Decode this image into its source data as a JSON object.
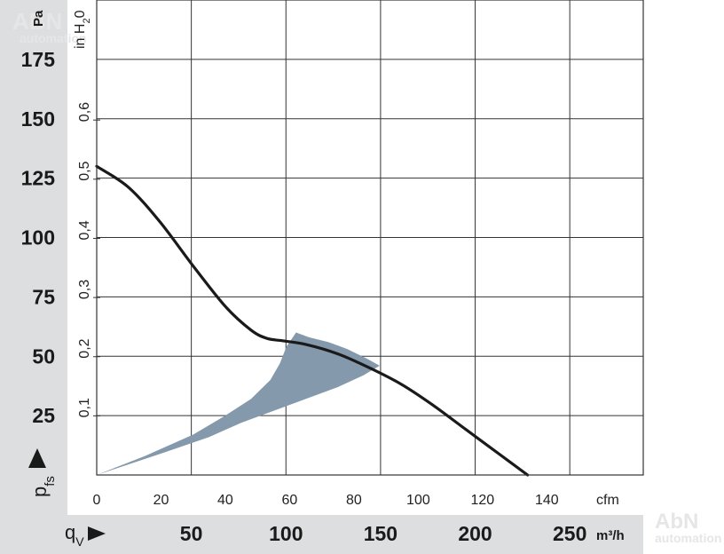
{
  "chart_data": {
    "type": "line",
    "x_axis": {
      "label": "cfm",
      "ticks": [
        "0",
        "20",
        "40",
        "60",
        "80",
        "100",
        "120",
        "140"
      ],
      "range": [
        0,
        170
      ]
    },
    "x_axis_secondary": {
      "label": "m³/h",
      "symbol": "q",
      "symbol_sub": "V",
      "ticks": [
        "50",
        "100",
        "150",
        "200",
        "250"
      ],
      "tick_values": [
        50,
        100,
        150,
        200,
        250
      ]
    },
    "y_axis": {
      "label": "Pa",
      "symbol": "p",
      "symbol_sub": "fs",
      "ticks": [
        "25",
        "50",
        "75",
        "100",
        "125",
        "150",
        "175"
      ],
      "range": [
        0,
        200
      ]
    },
    "y_axis_secondary": {
      "label": "in H",
      "label_sub": "2",
      "label_tail": "0",
      "ticks": [
        "0,1",
        "0,2",
        "0,3",
        "0,4",
        "0,5",
        "0,6"
      ],
      "tick_values": [
        0.1,
        0.2,
        0.3,
        0.4,
        0.5,
        0.6
      ]
    },
    "grid": true,
    "series": [
      {
        "kind": "curve",
        "color": "#1a1a1a",
        "points": [
          [
            0,
            130
          ],
          [
            10,
            121
          ],
          [
            20,
            106
          ],
          [
            30,
            88
          ],
          [
            40,
            71
          ],
          [
            48,
            61
          ],
          [
            53,
            57.5
          ],
          [
            58,
            56.5
          ],
          [
            65,
            55
          ],
          [
            75,
            51
          ],
          [
            85,
            45
          ],
          [
            95,
            38
          ],
          [
            105,
            29
          ],
          [
            115,
            19
          ],
          [
            125,
            9
          ],
          [
            134,
            0
          ]
        ]
      },
      {
        "kind": "area",
        "color": "#8499ab",
        "points": [
          [
            0,
            0
          ],
          [
            15,
            8
          ],
          [
            30,
            17
          ],
          [
            40,
            25
          ],
          [
            48,
            32
          ],
          [
            54,
            40
          ],
          [
            57,
            47
          ],
          [
            59,
            54
          ],
          [
            62,
            60
          ],
          [
            66,
            58
          ],
          [
            72,
            56
          ],
          [
            78,
            53
          ],
          [
            84,
            49
          ],
          [
            88,
            46
          ],
          [
            83,
            42
          ],
          [
            75,
            37
          ],
          [
            65,
            32
          ],
          [
            55,
            27
          ],
          [
            45,
            22
          ],
          [
            35,
            16
          ],
          [
            20,
            9
          ],
          [
            0,
            0
          ]
        ]
      }
    ]
  },
  "watermark": {
    "top_text": "ABN",
    "top_sub": "automation",
    "bottom_text": "AbN",
    "bottom_sub": "automation"
  },
  "colors": {
    "grid": "#333333",
    "curve": "#1a1a1a",
    "area": "#8499ab",
    "band": "#dddedf"
  }
}
